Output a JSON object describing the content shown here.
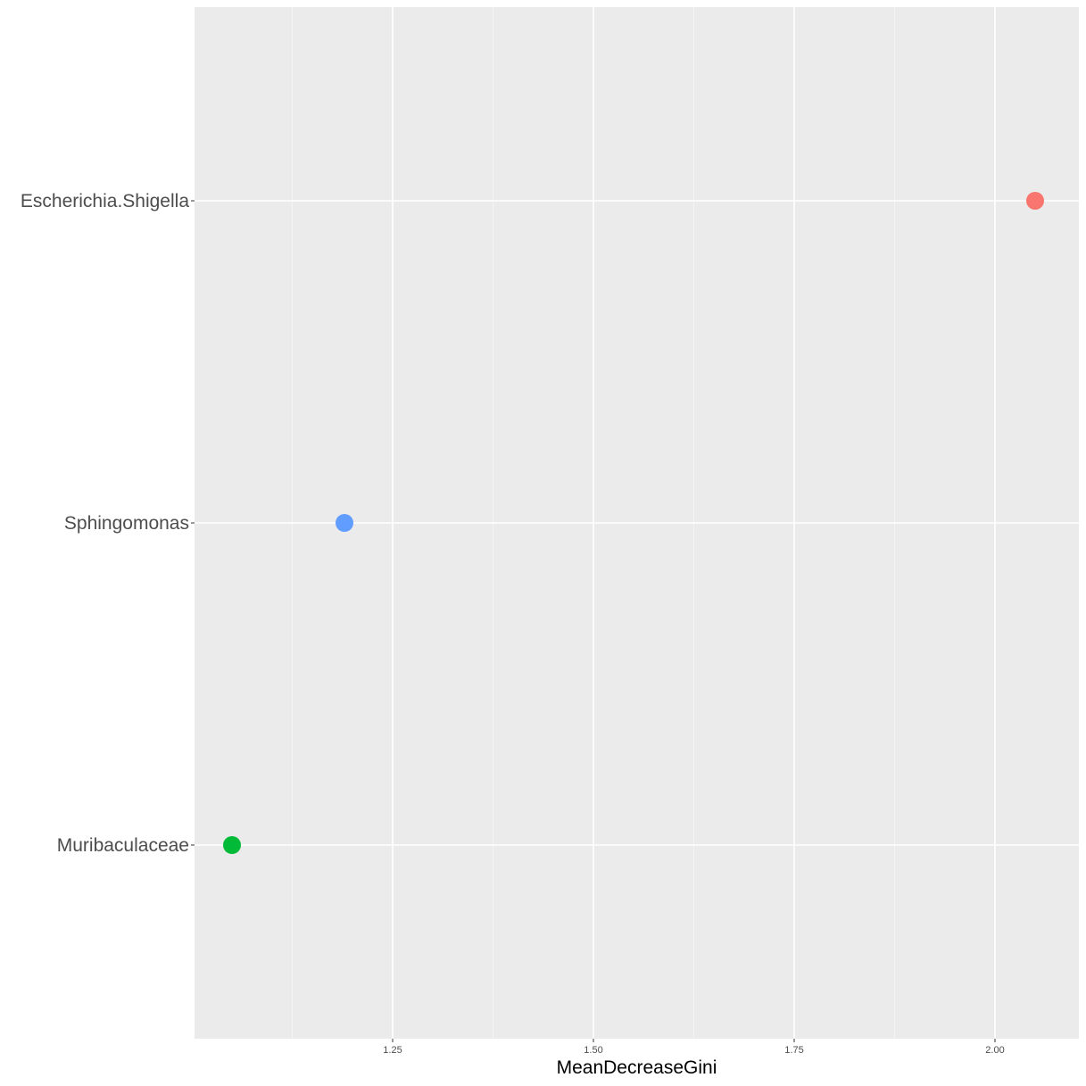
{
  "chart_data": {
    "type": "scatter",
    "title": "",
    "xlabel": "MeanDecreaseGini",
    "ylabel": "",
    "xlim": [
      1.0,
      2.1
    ],
    "x_ticks": [
      1.25,
      1.5,
      1.75,
      2.0
    ],
    "x_tick_labels": [
      "1.25",
      "1.50",
      "1.75",
      "2.00"
    ],
    "categories": [
      "Escherichia.Shigella",
      "Sphingomonas",
      "Muribaculaceae"
    ],
    "points": [
      {
        "category": "Escherichia.Shigella",
        "x": 2.05,
        "color": "#F8766D"
      },
      {
        "category": "Sphingomonas",
        "x": 1.19,
        "color": "#619CFF"
      },
      {
        "category": "Muribaculaceae",
        "x": 1.05,
        "color": "#00BA38"
      }
    ],
    "grid": true,
    "legend": "none",
    "panel_background": "#EBEBEB",
    "grid_color": "#FFFFFF"
  }
}
